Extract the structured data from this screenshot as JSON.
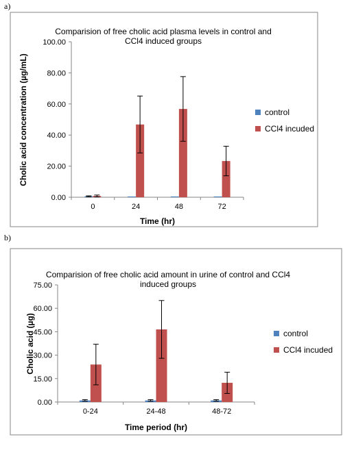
{
  "panels": [
    {
      "label": "a)"
    },
    {
      "label": "b)"
    }
  ],
  "colors": {
    "control": "#4f81bd",
    "treated": "#c0504d",
    "frame": "#868686",
    "axis": "#868686"
  },
  "chart_data": [
    {
      "type": "bar",
      "title_lines": [
        "Comparision of free cholic acid plasma levels in control and",
        "CCl4 induced groups"
      ],
      "xlabel": "Time (hr)",
      "ylabel": "Cholic acid concentration (µg/mL)",
      "categories": [
        "0",
        "24",
        "48",
        "72"
      ],
      "ylim": [
        0,
        100
      ],
      "yticks": [
        "0.00",
        "20.00",
        "40.00",
        "60.00",
        "80.00",
        "100.00"
      ],
      "grid": false,
      "legend_position": "right",
      "series": [
        {
          "name": "control",
          "values": [
            0.6,
            0.5,
            0.5,
            0.5
          ],
          "errors": [
            0.3,
            0,
            0,
            0
          ]
        },
        {
          "name": "CCl4 incuded",
          "values": [
            0.8,
            46.8,
            56.8,
            23.3
          ],
          "errors": [
            0.6,
            18.3,
            20.8,
            9.5
          ]
        }
      ]
    },
    {
      "type": "bar",
      "title_lines": [
        "Comparision of free cholic acid amount in urine of control and CCl4",
        "induced groups"
      ],
      "xlabel": "Time period (hr)",
      "ylabel": "Cholic acid (µg)",
      "categories": [
        "0-24",
        "24-48",
        "48-72"
      ],
      "ylim": [
        0,
        75
      ],
      "yticks": [
        "0.00",
        "15.00",
        "30.00",
        "45.00",
        "60.00",
        "75.00"
      ],
      "grid": false,
      "legend_position": "right",
      "series": [
        {
          "name": "control",
          "values": [
            1.0,
            1.0,
            1.0
          ],
          "errors": [
            0.5,
            0.5,
            0.5
          ]
        },
        {
          "name": "CCl4 incuded",
          "values": [
            24.0,
            46.5,
            12.3
          ],
          "errors": [
            13.0,
            18.5,
            6.8
          ]
        }
      ]
    }
  ]
}
